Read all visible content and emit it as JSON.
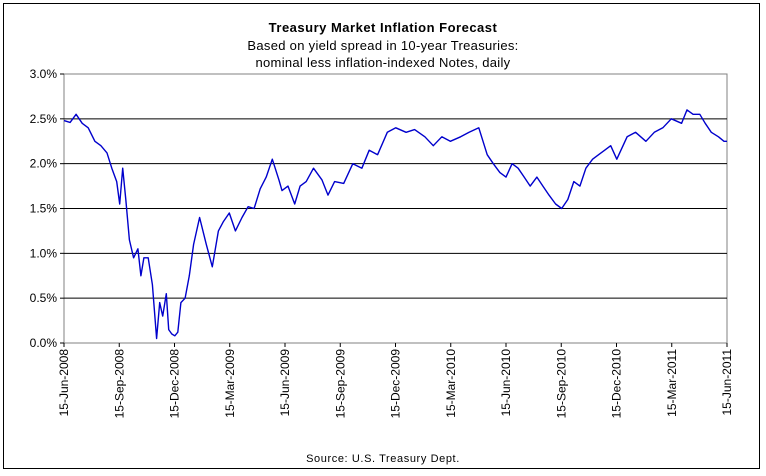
{
  "chart_data": {
    "type": "line",
    "title": "Treasury Market Inflation Forecast",
    "subtitle_lines": [
      "Based on yield spread in 10-year Treasuries:",
      "nominal less inflation-indexed Notes, daily"
    ],
    "source": "Source: U.S. Treasury Dept.",
    "xlabel": "",
    "ylabel": "",
    "x_ticks": [
      "15-Jun-2008",
      "15-Sep-2008",
      "15-Dec-2008",
      "15-Mar-2009",
      "15-Jun-2009",
      "15-Sep-2009",
      "15-Dec-2009",
      "15-Mar-2010",
      "15-Jun-2010",
      "15-Sep-2010",
      "15-Dec-2010",
      "15-Mar-2011",
      "15-Jun-2011"
    ],
    "y_ticks": [
      "0.0%",
      "0.5%",
      "1.0%",
      "1.5%",
      "2.0%",
      "2.5%",
      "3.0%"
    ],
    "ylim": [
      0,
      3.0
    ],
    "xlim": [
      "2008-06-15",
      "2011-06-15"
    ],
    "grid": "horizontal",
    "line_color": "#0000cc",
    "series": [
      {
        "x": [
          "2008-06-15",
          "2008-06-25",
          "2008-07-05",
          "2008-07-15",
          "2008-07-25",
          "2008-08-05",
          "2008-08-15",
          "2008-08-25",
          "2008-09-02",
          "2008-09-10",
          "2008-09-15",
          "2008-09-20",
          "2008-09-25",
          "2008-10-01",
          "2008-10-08",
          "2008-10-15",
          "2008-10-20",
          "2008-10-25",
          "2008-11-01",
          "2008-11-08",
          "2008-11-15",
          "2008-11-20",
          "2008-11-25",
          "2008-12-01",
          "2008-12-05",
          "2008-12-10",
          "2008-12-15",
          "2008-12-20",
          "2008-12-25",
          "2009-01-01",
          "2009-01-08",
          "2009-01-15",
          "2009-01-25",
          "2009-02-05",
          "2009-02-15",
          "2009-02-25",
          "2009-03-05",
          "2009-03-15",
          "2009-03-25",
          "2009-04-05",
          "2009-04-15",
          "2009-04-25",
          "2009-05-05",
          "2009-05-15",
          "2009-05-25",
          "2009-06-05",
          "2009-06-10",
          "2009-06-20",
          "2009-07-01",
          "2009-07-10",
          "2009-07-20",
          "2009-08-01",
          "2009-08-15",
          "2009-08-25",
          "2009-09-05",
          "2009-09-20",
          "2009-10-05",
          "2009-10-20",
          "2009-11-01",
          "2009-11-15",
          "2009-12-01",
          "2009-12-15",
          "2010-01-01",
          "2010-01-15",
          "2010-02-01",
          "2010-02-15",
          "2010-03-01",
          "2010-03-15",
          "2010-04-01",
          "2010-04-15",
          "2010-05-01",
          "2010-05-15",
          "2010-05-25",
          "2010-06-05",
          "2010-06-15",
          "2010-06-25",
          "2010-07-05",
          "2010-07-15",
          "2010-07-25",
          "2010-08-05",
          "2010-08-15",
          "2010-08-25",
          "2010-09-05",
          "2010-09-15",
          "2010-09-25",
          "2010-10-05",
          "2010-10-15",
          "2010-10-25",
          "2010-11-05",
          "2010-11-15",
          "2010-11-25",
          "2010-12-05",
          "2010-12-15",
          "2011-01-01",
          "2011-01-15",
          "2011-02-01",
          "2011-02-15",
          "2011-03-01",
          "2011-03-15",
          "2011-04-01",
          "2011-04-10",
          "2011-04-20",
          "2011-05-01",
          "2011-05-10",
          "2011-05-20",
          "2011-06-01",
          "2011-06-10",
          "2011-06-15"
        ],
        "values": [
          2.48,
          2.46,
          2.55,
          2.45,
          2.4,
          2.25,
          2.2,
          2.12,
          1.95,
          1.8,
          1.55,
          1.95,
          1.6,
          1.15,
          0.95,
          1.05,
          0.75,
          0.95,
          0.95,
          0.65,
          0.05,
          0.45,
          0.3,
          0.55,
          0.15,
          0.1,
          0.08,
          0.12,
          0.45,
          0.5,
          0.75,
          1.1,
          1.4,
          1.1,
          0.85,
          1.25,
          1.35,
          1.45,
          1.25,
          1.4,
          1.52,
          1.5,
          1.72,
          1.85,
          2.05,
          1.82,
          1.7,
          1.75,
          1.55,
          1.75,
          1.8,
          1.95,
          1.82,
          1.65,
          1.8,
          1.78,
          2.0,
          1.95,
          2.15,
          2.1,
          2.35,
          2.4,
          2.35,
          2.38,
          2.3,
          2.2,
          2.3,
          2.25,
          2.3,
          2.35,
          2.4,
          2.1,
          2.0,
          1.9,
          1.85,
          2.0,
          1.95,
          1.85,
          1.75,
          1.85,
          1.75,
          1.65,
          1.55,
          1.5,
          1.6,
          1.8,
          1.75,
          1.95,
          2.05,
          2.1,
          2.15,
          2.2,
          2.05,
          2.3,
          2.35,
          2.25,
          2.35,
          2.4,
          2.5,
          2.45,
          2.6,
          2.55,
          2.55,
          2.45,
          2.35,
          2.3,
          2.25,
          2.25
        ]
      }
    ]
  }
}
